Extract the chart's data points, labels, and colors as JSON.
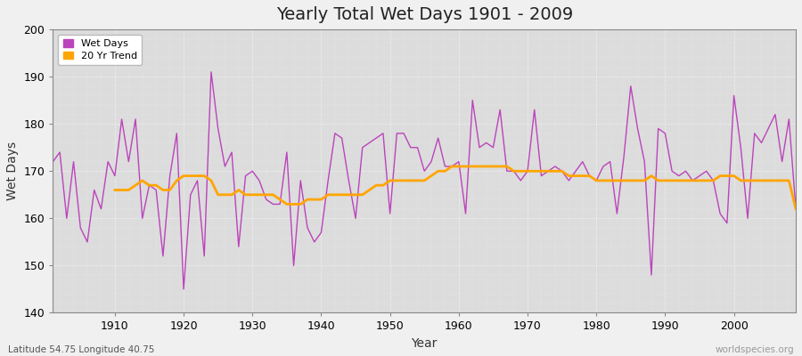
{
  "title": "Yearly Total Wet Days 1901 - 2009",
  "xlabel": "Year",
  "ylabel": "Wet Days",
  "subtitle": "Latitude 54.75 Longitude 40.75",
  "watermark": "worldspecies.org",
  "wet_days_color": "#BB44BB",
  "trend_color": "#FFA500",
  "plot_bg_color": "#DCDCDC",
  "fig_bg_color": "#F0F0F0",
  "ylim": [
    140,
    200
  ],
  "xlim": [
    1901,
    2009
  ],
  "years": [
    1901,
    1902,
    1903,
    1904,
    1905,
    1906,
    1907,
    1908,
    1909,
    1910,
    1911,
    1912,
    1913,
    1914,
    1915,
    1916,
    1917,
    1918,
    1919,
    1920,
    1921,
    1922,
    1923,
    1924,
    1925,
    1926,
    1927,
    1928,
    1929,
    1930,
    1931,
    1932,
    1933,
    1934,
    1935,
    1936,
    1937,
    1938,
    1939,
    1940,
    1941,
    1942,
    1943,
    1944,
    1945,
    1946,
    1947,
    1948,
    1949,
    1950,
    1951,
    1952,
    1953,
    1954,
    1955,
    1956,
    1957,
    1958,
    1959,
    1960,
    1961,
    1962,
    1963,
    1964,
    1965,
    1966,
    1967,
    1968,
    1969,
    1970,
    1971,
    1972,
    1973,
    1974,
    1975,
    1976,
    1977,
    1978,
    1979,
    1980,
    1981,
    1982,
    1983,
    1984,
    1985,
    1986,
    1987,
    1988,
    1989,
    1990,
    1991,
    1992,
    1993,
    1994,
    1995,
    1996,
    1997,
    1998,
    1999,
    2000,
    2001,
    2002,
    2003,
    2004,
    2005,
    2006,
    2007,
    2008,
    2009
  ],
  "wet_days": [
    172,
    174,
    160,
    172,
    158,
    155,
    166,
    162,
    172,
    169,
    181,
    172,
    181,
    160,
    167,
    166,
    152,
    169,
    178,
    145,
    165,
    168,
    152,
    191,
    179,
    171,
    174,
    154,
    169,
    170,
    168,
    164,
    163,
    163,
    174,
    150,
    168,
    158,
    155,
    157,
    168,
    178,
    177,
    168,
    160,
    175,
    176,
    177,
    178,
    161,
    178,
    178,
    175,
    175,
    170,
    172,
    177,
    171,
    171,
    172,
    161,
    185,
    175,
    176,
    175,
    183,
    170,
    170,
    168,
    170,
    183,
    169,
    170,
    171,
    170,
    168,
    170,
    172,
    169,
    168,
    171,
    172,
    161,
    173,
    188,
    179,
    172,
    148,
    179,
    178,
    170,
    169,
    170,
    168,
    169,
    170,
    168,
    161,
    159,
    186,
    175,
    160,
    178,
    176,
    179,
    182,
    172,
    181,
    162
  ],
  "trend_years": [
    1910,
    1911,
    1912,
    1913,
    1914,
    1915,
    1916,
    1917,
    1918,
    1919,
    1920,
    1921,
    1922,
    1923,
    1924,
    1925,
    1926,
    1927,
    1928,
    1929,
    1930,
    1931,
    1932,
    1933,
    1934,
    1935,
    1936,
    1937,
    1938,
    1939,
    1940,
    1941,
    1942,
    1943,
    1944,
    1945,
    1946,
    1947,
    1948,
    1949,
    1950,
    1951,
    1952,
    1953,
    1954,
    1955,
    1956,
    1957,
    1958,
    1959,
    1960,
    1961,
    1962,
    1963,
    1964,
    1965,
    1966,
    1967,
    1968,
    1969,
    1970,
    1971,
    1972,
    1973,
    1974,
    1975,
    1976,
    1977,
    1978,
    1979,
    1980,
    1981,
    1982,
    1983,
    1984,
    1985,
    1986,
    1987,
    1988,
    1989,
    1990,
    1991,
    1992,
    1993,
    1994,
    1995,
    1996,
    1997,
    1998,
    1999,
    2000,
    2001,
    2002,
    2003,
    2004,
    2005,
    2006,
    2007,
    2008,
    2009
  ],
  "trend_values": [
    166,
    166,
    166,
    167,
    168,
    167,
    167,
    166,
    166,
    168,
    169,
    169,
    169,
    169,
    168,
    165,
    165,
    165,
    166,
    165,
    165,
    165,
    165,
    165,
    164,
    163,
    163,
    163,
    164,
    164,
    164,
    165,
    165,
    165,
    165,
    165,
    165,
    166,
    167,
    167,
    168,
    168,
    168,
    168,
    168,
    168,
    169,
    170,
    170,
    171,
    171,
    171,
    171,
    171,
    171,
    171,
    171,
    171,
    170,
    170,
    170,
    170,
    170,
    170,
    170,
    170,
    169,
    169,
    169,
    169,
    168,
    168,
    168,
    168,
    168,
    168,
    168,
    168,
    169,
    168,
    168,
    168,
    168,
    168,
    168,
    168,
    168,
    168,
    169,
    169,
    169,
    168,
    168,
    168,
    168,
    168,
    168,
    168,
    168,
    162
  ]
}
